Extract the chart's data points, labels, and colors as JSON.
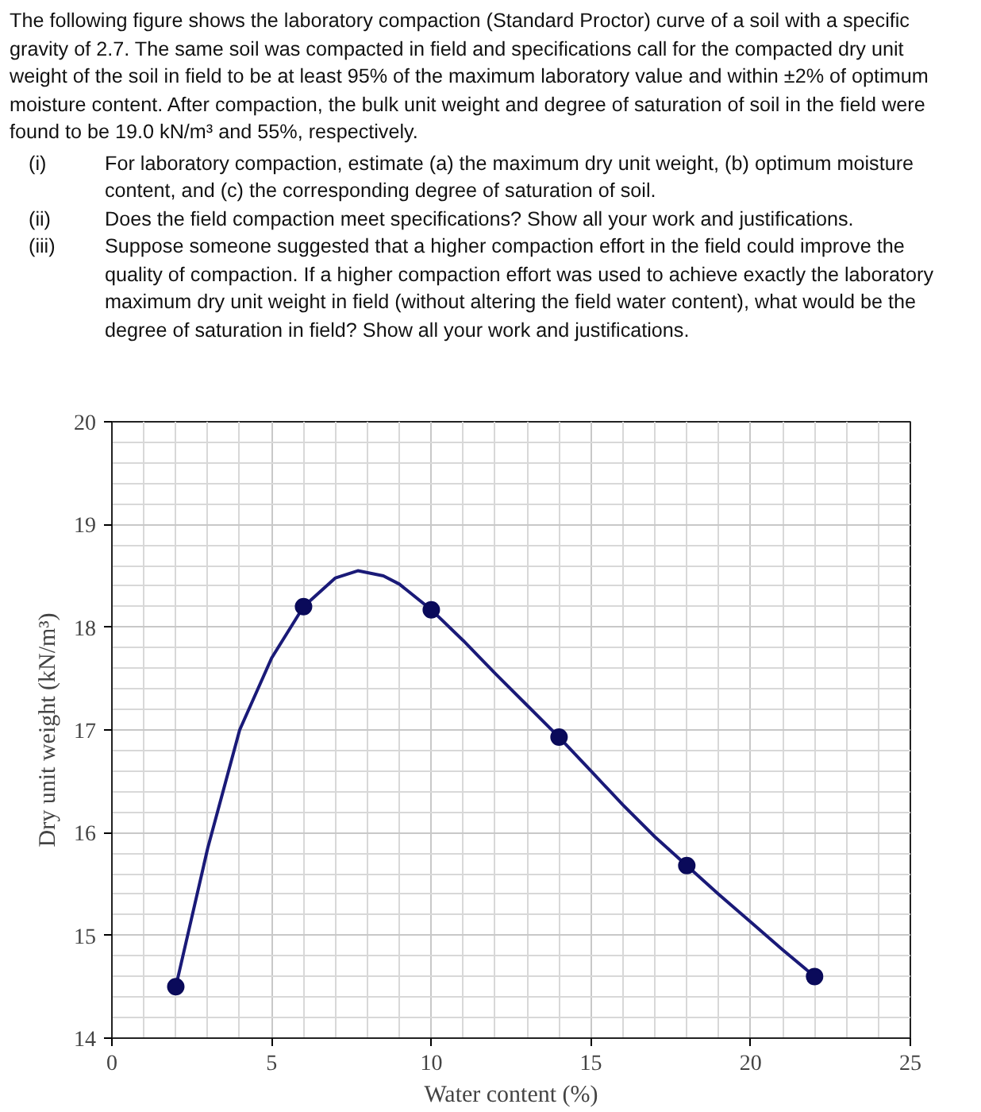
{
  "chart_data": {
    "type": "line",
    "annotations": [
      "The following figure shows the laboratory compaction (Standard Proctor) curve of a soil with a specific gravity of 2.7. The same soil was compacted in field and specifications call for the compacted dry unit weight of the soil in field to be at least 95% of the maximum laboratory value and within ±2% of optimum moisture content. After compaction, the bulk unit weight and degree of saturation of soil in the field were found to be 19.0 kN/m³ and 55%, respectively.",
      "(i) For laboratory compaction, estimate (a) the maximum dry unit weight, (b) optimum moisture content, and (c) the corresponding degree of saturation of soil.",
      "(ii) Does the field compaction meet specifications? Show all your work and justifications.",
      "(iii) Suppose someone suggested that a higher compaction effort in the field could improve the quality of compaction. If a higher compaction effort was used to achieve exactly the laboratory maximum dry unit weight in field (without altering the field water content), what would be the degree of saturation in field? Show all your work and justifications."
    ],
    "xlabel": "Water content (%)",
    "ylabel": "Dry unit weight (kN/m³)",
    "xlim": [
      0,
      25
    ],
    "xticks": [
      0,
      5,
      10,
      15,
      20,
      25
    ],
    "ylim": [
      14,
      20
    ],
    "yticks": [
      14,
      15,
      16,
      17,
      18,
      19,
      20
    ],
    "grid": true,
    "series": [
      {
        "marker": "none",
        "color": "#1a1a78",
        "x": [
          2,
          3,
          4,
          5,
          6,
          7,
          7.7,
          8.5,
          9,
          10,
          11,
          12,
          13,
          14,
          15,
          16,
          17,
          18,
          19,
          20,
          21,
          22
        ],
        "values": [
          14.5,
          15.85,
          17.0,
          17.7,
          18.2,
          18.48,
          18.55,
          18.5,
          18.42,
          18.17,
          17.87,
          17.55,
          17.24,
          16.93,
          16.6,
          16.27,
          15.96,
          15.68,
          15.4,
          15.13,
          14.86,
          14.6
        ]
      },
      {
        "type": "scatter",
        "marker": "circle",
        "color": "#0a0a5a",
        "x": [
          2,
          6,
          10,
          14,
          18,
          22
        ],
        "values": [
          14.5,
          18.2,
          18.17,
          16.93,
          15.68,
          14.6
        ]
      }
    ]
  }
}
